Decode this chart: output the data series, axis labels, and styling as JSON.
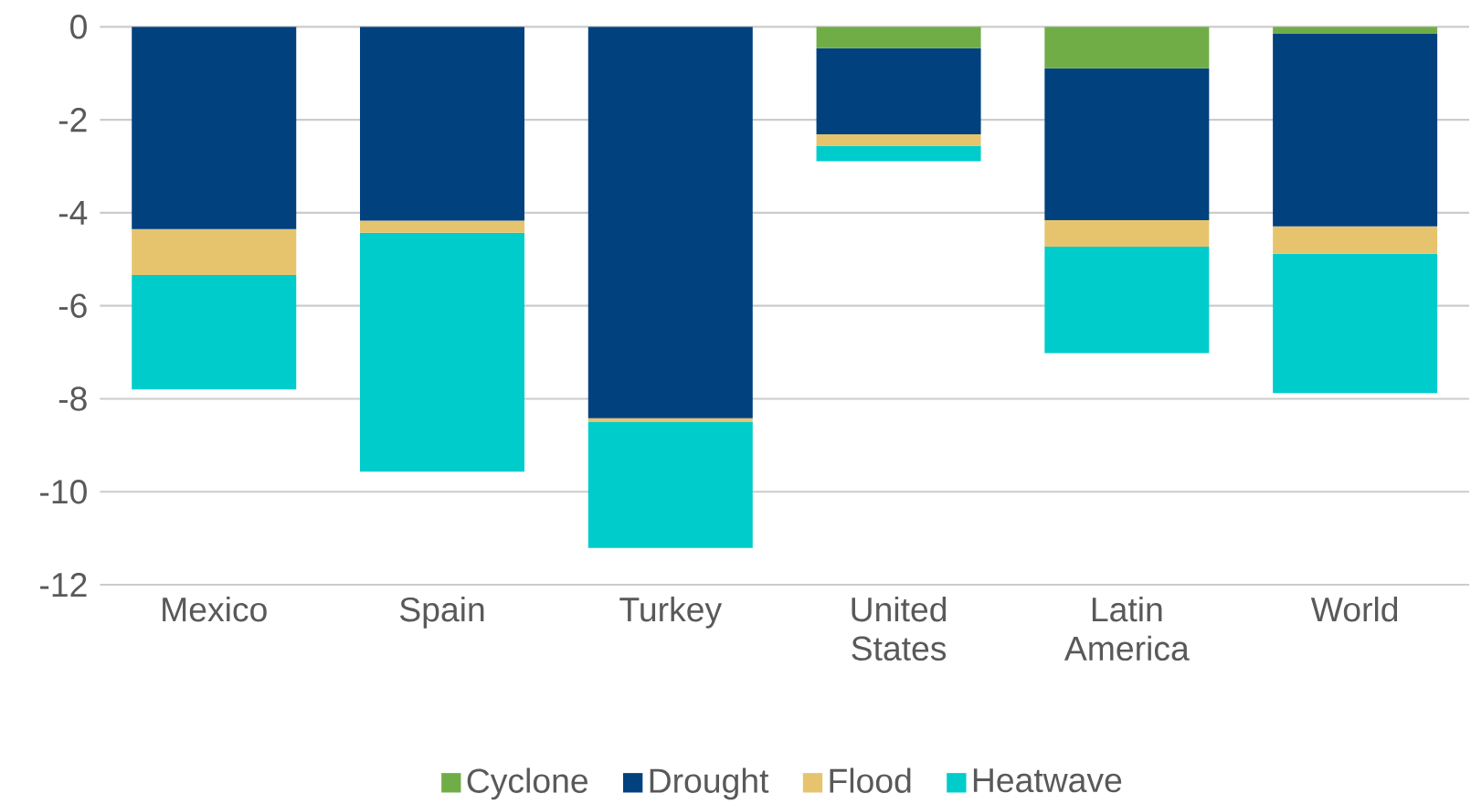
{
  "chart_data": {
    "type": "bar",
    "stacked": true,
    "categories": [
      "Mexico",
      "Spain",
      "Turkey",
      "United States",
      "Latin America",
      "World"
    ],
    "series": [
      {
        "name": "Cyclone",
        "color": "#70ad47",
        "values": [
          0,
          0,
          0,
          -0.46,
          -0.89,
          -0.14
        ]
      },
      {
        "name": "Drought",
        "color": "#00417e",
        "values": [
          -4.35,
          -4.17,
          -8.42,
          -1.85,
          -3.27,
          -4.15
        ]
      },
      {
        "name": "Flood",
        "color": "#e6c46e",
        "values": [
          -0.99,
          -0.26,
          -0.08,
          -0.25,
          -0.57,
          -0.59
        ]
      },
      {
        "name": "Heatwave",
        "color": "#00cccc",
        "values": [
          -2.46,
          -5.14,
          -2.71,
          -0.33,
          -2.29,
          -3.0
        ]
      }
    ],
    "ylim": [
      -12,
      0
    ],
    "yticks": [
      -12,
      -10,
      -8,
      -6,
      -4,
      -2,
      0
    ],
    "grid": "y",
    "legend": "bottom"
  }
}
